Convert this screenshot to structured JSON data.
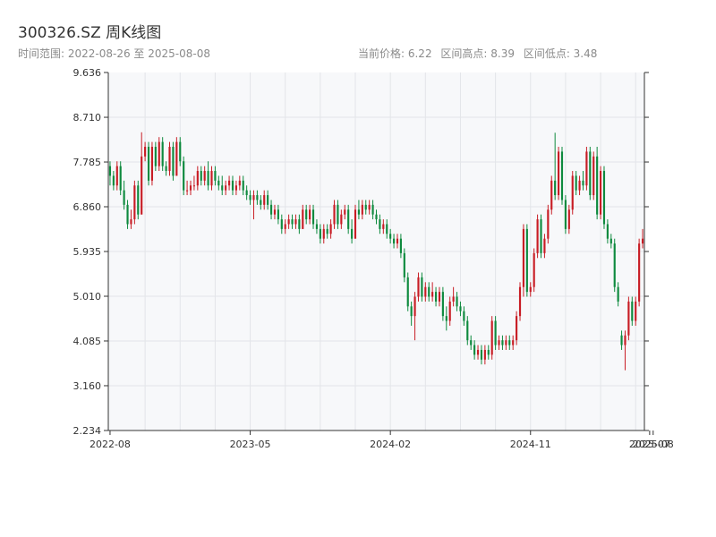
{
  "header": {
    "title": "300326.SZ 周K线图",
    "subtitle": "时间范围: 2022-08-26 至 2025-08-08",
    "current_price": "当前价格: 6.22",
    "range_high": "区间高点: 8.39",
    "range_low": "区间低点: 3.48"
  },
  "chart_data": {
    "type": "candlestick",
    "ylim": [
      2.234,
      9.636
    ],
    "yticks": [
      "2.234",
      "3.160",
      "4.085",
      "5.010",
      "5.935",
      "6.860",
      "7.785",
      "8.710",
      "9.636"
    ],
    "xticks": [
      {
        "label": "2022-08",
        "index": 0
      },
      {
        "label": "2023-05",
        "index": 40
      },
      {
        "label": "2024-02",
        "index": 80
      },
      {
        "label": "2024-11",
        "index": 120
      },
      {
        "label": "2025-07",
        "index": 154
      },
      {
        "label": "2025-08",
        "index": 155
      }
    ],
    "colors": {
      "up": "#c81d25",
      "down": "#0e8a3e"
    },
    "candles": [
      [
        7.7,
        7.5,
        7.8,
        7.3
      ],
      [
        7.5,
        7.3,
        7.6,
        7.2
      ],
      [
        7.3,
        7.7,
        7.8,
        7.2
      ],
      [
        7.7,
        7.2,
        7.8,
        7.1
      ],
      [
        7.2,
        6.9,
        7.4,
        6.8
      ],
      [
        6.9,
        6.5,
        7.0,
        6.4
      ],
      [
        6.5,
        6.6,
        6.8,
        6.4
      ],
      [
        6.6,
        7.3,
        7.4,
        6.5
      ],
      [
        7.3,
        6.7,
        7.4,
        6.6
      ],
      [
        6.7,
        7.9,
        8.4,
        6.7
      ],
      [
        7.9,
        8.1,
        8.2,
        7.8
      ],
      [
        8.1,
        7.4,
        8.2,
        7.3
      ],
      [
        7.4,
        8.1,
        8.2,
        7.3
      ],
      [
        8.1,
        7.7,
        8.2,
        7.6
      ],
      [
        7.7,
        8.2,
        8.3,
        7.6
      ],
      [
        8.2,
        7.7,
        8.3,
        7.6
      ],
      [
        7.7,
        7.6,
        7.8,
        7.5
      ],
      [
        7.6,
        8.1,
        8.2,
        7.5
      ],
      [
        8.1,
        7.5,
        8.2,
        7.4
      ],
      [
        7.5,
        8.2,
        8.3,
        7.5
      ],
      [
        8.2,
        7.8,
        8.3,
        7.7
      ],
      [
        7.8,
        7.2,
        7.9,
        7.1
      ],
      [
        7.2,
        7.2,
        7.4,
        7.1
      ],
      [
        7.2,
        7.3,
        7.4,
        7.1
      ],
      [
        7.3,
        7.3,
        7.5,
        7.2
      ],
      [
        7.3,
        7.6,
        7.7,
        7.2
      ],
      [
        7.6,
        7.4,
        7.7,
        7.3
      ],
      [
        7.4,
        7.6,
        7.7,
        7.3
      ],
      [
        7.6,
        7.3,
        7.8,
        7.2
      ],
      [
        7.3,
        7.6,
        7.7,
        7.2
      ],
      [
        7.6,
        7.4,
        7.7,
        7.3
      ],
      [
        7.4,
        7.3,
        7.5,
        7.2
      ],
      [
        7.3,
        7.2,
        7.5,
        7.1
      ],
      [
        7.2,
        7.3,
        7.4,
        7.1
      ],
      [
        7.3,
        7.4,
        7.5,
        7.2
      ],
      [
        7.4,
        7.2,
        7.5,
        7.1
      ],
      [
        7.2,
        7.3,
        7.4,
        7.1
      ],
      [
        7.3,
        7.4,
        7.5,
        7.2
      ],
      [
        7.4,
        7.2,
        7.5,
        7.1
      ],
      [
        7.2,
        7.1,
        7.3,
        7.0
      ],
      [
        7.1,
        7.0,
        7.2,
        6.9
      ],
      [
        7.0,
        7.1,
        7.2,
        6.6
      ],
      [
        7.1,
        7.0,
        7.2,
        6.9
      ],
      [
        7.0,
        6.9,
        7.1,
        6.8
      ],
      [
        6.9,
        7.1,
        7.2,
        6.8
      ],
      [
        7.1,
        6.9,
        7.2,
        6.8
      ],
      [
        6.9,
        6.7,
        7.0,
        6.6
      ],
      [
        6.7,
        6.8,
        6.9,
        6.6
      ],
      [
        6.8,
        6.6,
        6.9,
        6.5
      ],
      [
        6.6,
        6.4,
        6.7,
        6.3
      ],
      [
        6.4,
        6.5,
        6.6,
        6.3
      ],
      [
        6.5,
        6.6,
        6.7,
        6.4
      ],
      [
        6.6,
        6.5,
        6.7,
        6.4
      ],
      [
        6.5,
        6.6,
        6.7,
        6.4
      ],
      [
        6.6,
        6.4,
        6.7,
        6.3
      ],
      [
        6.4,
        6.8,
        6.9,
        6.4
      ],
      [
        6.8,
        6.6,
        6.9,
        6.5
      ],
      [
        6.6,
        6.8,
        6.9,
        6.5
      ],
      [
        6.8,
        6.5,
        6.9,
        6.4
      ],
      [
        6.5,
        6.4,
        6.6,
        6.3
      ],
      [
        6.4,
        6.2,
        6.5,
        6.1
      ],
      [
        6.2,
        6.4,
        6.5,
        6.1
      ],
      [
        6.4,
        6.3,
        6.5,
        6.2
      ],
      [
        6.3,
        6.5,
        6.6,
        6.2
      ],
      [
        6.5,
        6.9,
        7.0,
        6.4
      ],
      [
        6.9,
        6.5,
        7.0,
        6.4
      ],
      [
        6.5,
        6.7,
        6.8,
        6.4
      ],
      [
        6.7,
        6.8,
        6.9,
        6.6
      ],
      [
        6.8,
        6.4,
        6.9,
        6.3
      ],
      [
        6.4,
        6.2,
        6.6,
        6.1
      ],
      [
        6.2,
        6.8,
        6.9,
        6.2
      ],
      [
        6.8,
        6.7,
        7.0,
        6.6
      ],
      [
        6.7,
        6.9,
        7.0,
        6.6
      ],
      [
        6.9,
        6.8,
        7.0,
        6.7
      ],
      [
        6.8,
        6.9,
        7.0,
        6.7
      ],
      [
        6.9,
        6.7,
        7.0,
        6.6
      ],
      [
        6.7,
        6.6,
        6.8,
        6.5
      ],
      [
        6.6,
        6.4,
        6.7,
        6.3
      ],
      [
        6.4,
        6.5,
        6.6,
        6.3
      ],
      [
        6.5,
        6.3,
        6.6,
        6.2
      ],
      [
        6.3,
        6.2,
        6.4,
        6.1
      ],
      [
        6.2,
        6.1,
        6.3,
        6.0
      ],
      [
        6.1,
        6.2,
        6.3,
        6.0
      ],
      [
        6.2,
        5.9,
        6.3,
        5.8
      ],
      [
        5.9,
        5.4,
        6.0,
        5.3
      ],
      [
        5.4,
        4.8,
        5.5,
        4.7
      ],
      [
        4.8,
        4.6,
        4.9,
        4.4
      ],
      [
        4.6,
        5.0,
        5.1,
        4.1
      ],
      [
        5.0,
        5.4,
        5.5,
        4.9
      ],
      [
        5.4,
        5.0,
        5.5,
        4.9
      ],
      [
        5.0,
        5.2,
        5.3,
        4.9
      ],
      [
        5.2,
        5.0,
        5.3,
        4.9
      ],
      [
        5.0,
        5.1,
        5.3,
        4.9
      ],
      [
        5.1,
        4.9,
        5.2,
        4.8
      ],
      [
        4.9,
        5.1,
        5.2,
        4.8
      ],
      [
        5.1,
        4.6,
        5.2,
        4.5
      ],
      [
        4.6,
        4.5,
        4.8,
        4.3
      ],
      [
        4.5,
        4.9,
        5.0,
        4.4
      ],
      [
        4.9,
        5.0,
        5.2,
        4.8
      ],
      [
        5.0,
        4.8,
        5.1,
        4.7
      ],
      [
        4.8,
        4.7,
        4.9,
        4.6
      ],
      [
        4.7,
        4.5,
        4.8,
        4.4
      ],
      [
        4.5,
        4.1,
        4.6,
        4.0
      ],
      [
        4.1,
        4.0,
        4.2,
        3.9
      ],
      [
        4.0,
        3.8,
        4.1,
        3.7
      ],
      [
        3.8,
        3.9,
        4.0,
        3.7
      ],
      [
        3.9,
        3.7,
        4.0,
        3.6
      ],
      [
        3.7,
        3.9,
        4.0,
        3.6
      ],
      [
        3.9,
        3.8,
        4.0,
        3.7
      ],
      [
        3.8,
        4.5,
        4.6,
        3.7
      ],
      [
        4.5,
        4.0,
        4.6,
        3.9
      ],
      [
        4.0,
        4.1,
        4.2,
        3.9
      ],
      [
        4.1,
        4.0,
        4.2,
        3.9
      ],
      [
        4.0,
        4.1,
        4.2,
        3.9
      ],
      [
        4.1,
        4.0,
        4.2,
        3.9
      ],
      [
        4.0,
        4.1,
        4.2,
        3.9
      ],
      [
        4.1,
        4.6,
        4.7,
        4.0
      ],
      [
        4.6,
        5.2,
        5.3,
        4.5
      ],
      [
        5.2,
        6.4,
        6.5,
        5.0
      ],
      [
        6.4,
        5.1,
        6.5,
        5.0
      ],
      [
        5.1,
        5.2,
        5.3,
        5.0
      ],
      [
        5.2,
        5.9,
        6.0,
        5.1
      ],
      [
        5.9,
        6.6,
        6.7,
        5.8
      ],
      [
        6.6,
        5.9,
        6.7,
        5.8
      ],
      [
        5.9,
        6.2,
        6.3,
        5.8
      ],
      [
        6.2,
        6.8,
        6.9,
        6.1
      ],
      [
        6.8,
        7.4,
        7.5,
        6.7
      ],
      [
        7.4,
        7.1,
        8.39,
        7.0
      ],
      [
        7.1,
        8.0,
        8.1,
        7.0
      ],
      [
        8.0,
        7.0,
        8.1,
        6.9
      ],
      [
        7.0,
        6.4,
        7.1,
        6.3
      ],
      [
        6.4,
        6.8,
        6.9,
        6.3
      ],
      [
        6.8,
        7.5,
        7.6,
        6.7
      ],
      [
        7.5,
        7.2,
        7.6,
        7.1
      ],
      [
        7.2,
        7.4,
        7.5,
        7.1
      ],
      [
        7.4,
        7.3,
        7.6,
        7.2
      ],
      [
        7.3,
        8.0,
        8.1,
        7.2
      ],
      [
        8.0,
        7.1,
        8.1,
        7.0
      ],
      [
        7.1,
        7.9,
        8.0,
        7.0
      ],
      [
        7.9,
        6.7,
        8.1,
        6.6
      ],
      [
        6.7,
        7.6,
        7.7,
        6.6
      ],
      [
        7.6,
        6.5,
        7.7,
        6.4
      ],
      [
        6.5,
        6.2,
        6.6,
        6.1
      ],
      [
        6.2,
        6.1,
        6.3,
        6.0
      ],
      [
        6.1,
        5.2,
        6.2,
        5.1
      ],
      [
        5.2,
        4.9,
        5.3,
        4.8
      ],
      [
        4.2,
        4.0,
        4.3,
        3.9
      ],
      [
        4.0,
        4.2,
        4.3,
        3.48
      ],
      [
        4.2,
        4.9,
        5.0,
        4.1
      ],
      [
        4.9,
        4.5,
        5.0,
        4.4
      ],
      [
        4.5,
        4.9,
        5.0,
        4.4
      ],
      [
        4.9,
        6.1,
        6.2,
        4.8
      ],
      [
        6.1,
        6.2,
        6.4,
        6.0
      ]
    ]
  }
}
